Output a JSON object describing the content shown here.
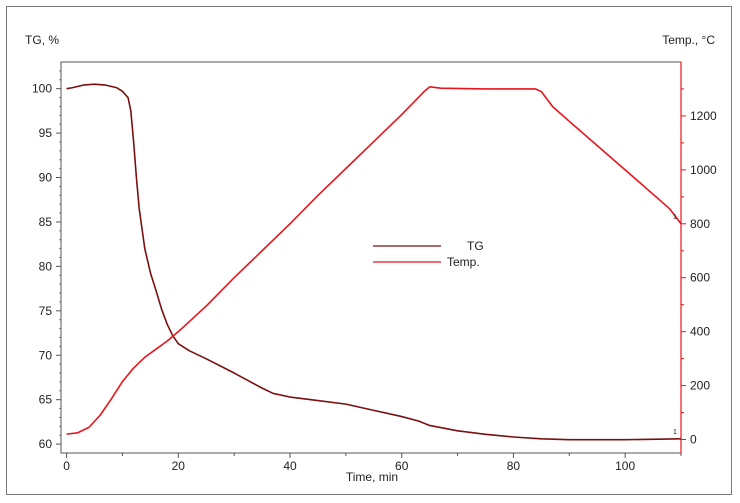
{
  "chart_data": {
    "type": "line",
    "title": "",
    "xlabel": "Time, min",
    "ylabel_left": "TG, %",
    "ylabel_right": "Temp., °C",
    "xlim": [
      -1,
      110
    ],
    "ylim_left": [
      59,
      103
    ],
    "ylim_right": [
      -50,
      1400
    ],
    "x_ticks": [
      0,
      20,
      40,
      60,
      80,
      100
    ],
    "y_left_ticks": [
      60,
      65,
      70,
      75,
      80,
      85,
      90,
      95,
      100
    ],
    "y_right_ticks": [
      0,
      200,
      400,
      600,
      800,
      1000,
      1200
    ],
    "x_tick_labels": [
      "0",
      "20",
      "40",
      "60",
      "80",
      "100"
    ],
    "y_left_tick_labels": [
      "60",
      "65",
      "70",
      "75",
      "80",
      "85",
      "90",
      "95",
      "100"
    ],
    "y_right_tick_labels": [
      "0",
      "200",
      "400",
      "600",
      "800",
      "1000",
      "1200"
    ],
    "grid": false,
    "legend_position": "center",
    "series": [
      {
        "name": "TG",
        "axis": "left",
        "color": "#7a1010",
        "end_marker": "1",
        "points": [
          [
            0,
            100
          ],
          [
            1,
            100.1
          ],
          [
            3,
            100.4
          ],
          [
            5,
            100.5
          ],
          [
            7,
            100.4
          ],
          [
            9,
            100.1
          ],
          [
            10,
            99.7
          ],
          [
            11,
            99.0
          ],
          [
            11.5,
            97.5
          ],
          [
            12,
            94
          ],
          [
            12.5,
            90
          ],
          [
            13,
            86.5
          ],
          [
            14,
            82
          ],
          [
            15,
            79.3
          ],
          [
            16,
            77.3
          ],
          [
            17,
            75.2
          ],
          [
            18,
            73.5
          ],
          [
            19,
            72.2
          ],
          [
            20,
            71.3
          ],
          [
            22,
            70.5
          ],
          [
            25,
            69.6
          ],
          [
            30,
            68.0
          ],
          [
            35,
            66.3
          ],
          [
            37,
            65.7
          ],
          [
            40,
            65.3
          ],
          [
            45,
            64.9
          ],
          [
            50,
            64.5
          ],
          [
            55,
            63.8
          ],
          [
            60,
            63.1
          ],
          [
            63,
            62.6
          ],
          [
            65,
            62.1
          ],
          [
            70,
            61.5
          ],
          [
            75,
            61.1
          ],
          [
            80,
            60.8
          ],
          [
            85,
            60.6
          ],
          [
            90,
            60.5
          ],
          [
            100,
            60.5
          ],
          [
            110,
            60.6
          ]
        ]
      },
      {
        "name": "Temp.",
        "axis": "right",
        "color": "#e8141c",
        "end_marker": "1",
        "points": [
          [
            0,
            20
          ],
          [
            2,
            25
          ],
          [
            4,
            45
          ],
          [
            6,
            90
          ],
          [
            8,
            150
          ],
          [
            10,
            215
          ],
          [
            12,
            265
          ],
          [
            14,
            305
          ],
          [
            16,
            335
          ],
          [
            18,
            365
          ],
          [
            20,
            400
          ],
          [
            25,
            495
          ],
          [
            30,
            600
          ],
          [
            35,
            700
          ],
          [
            40,
            800
          ],
          [
            45,
            905
          ],
          [
            50,
            1005
          ],
          [
            55,
            1105
          ],
          [
            60,
            1205
          ],
          [
            64,
            1290
          ],
          [
            65,
            1308
          ],
          [
            67,
            1303
          ],
          [
            75,
            1300
          ],
          [
            84,
            1300
          ],
          [
            85,
            1290
          ],
          [
            87,
            1235
          ],
          [
            90,
            1180
          ],
          [
            100,
            1000
          ],
          [
            108,
            855
          ],
          [
            110,
            800
          ]
        ]
      }
    ]
  }
}
